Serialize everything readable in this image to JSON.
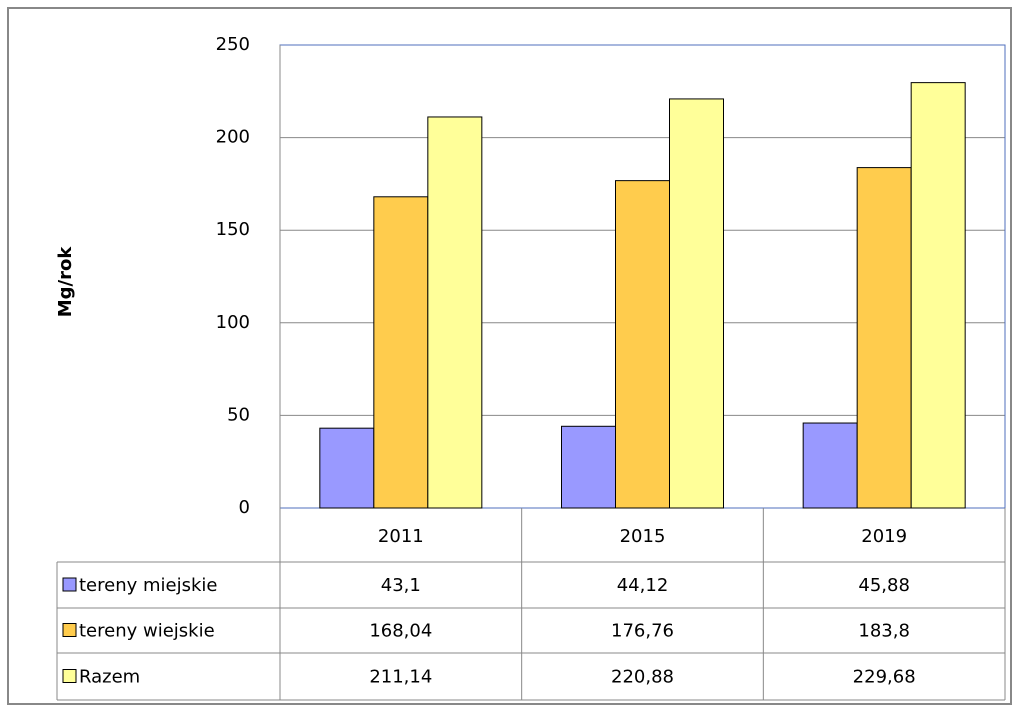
{
  "chart_data": {
    "type": "bar",
    "y_label": "Mg/rok",
    "categories": [
      "2011",
      "2015",
      "2019"
    ],
    "series": [
      {
        "name": "tereny miejskie",
        "color": "#9999ff",
        "values": [
          43.1,
          44.12,
          45.88
        ],
        "value_labels": [
          "43,1",
          "44,12",
          "45,88"
        ]
      },
      {
        "name": "tereny wiejskie",
        "color": "#ffcc4d",
        "values": [
          168.04,
          176.76,
          183.8
        ],
        "value_labels": [
          "168,04",
          "176,76",
          "183,8"
        ]
      },
      {
        "name": "Razem",
        "color": "#ffff99",
        "values": [
          211.14,
          220.88,
          229.68
        ],
        "value_labels": [
          "211,14",
          "220,88",
          "229,68"
        ]
      }
    ],
    "ylim": [
      0,
      250
    ],
    "yticks": [
      0,
      50,
      100,
      150,
      200,
      250
    ],
    "grid": true
  }
}
